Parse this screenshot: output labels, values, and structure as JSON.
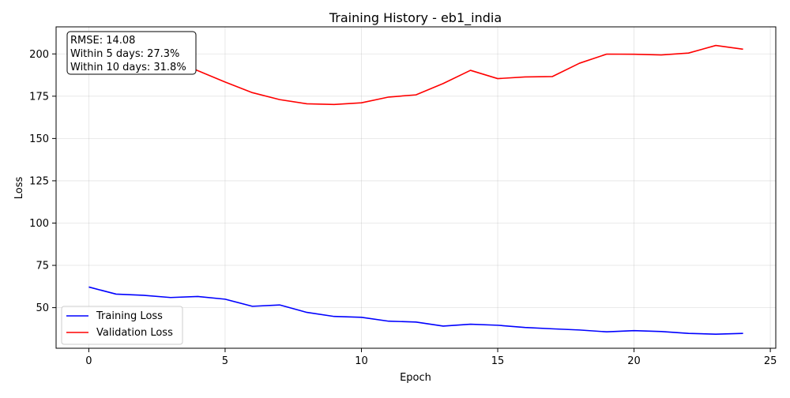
{
  "chart_data": {
    "type": "line",
    "title": "Training History - eb1_india",
    "xlabel": "Epoch",
    "ylabel": "Loss",
    "xlim": [
      -1.2,
      25.2
    ],
    "ylim": [
      26,
      216
    ],
    "xticks": [
      0,
      5,
      10,
      15,
      20,
      25
    ],
    "yticks": [
      50,
      75,
      100,
      125,
      150,
      175,
      200
    ],
    "grid": true,
    "legend_position": "lower-left",
    "x": [
      0,
      1,
      2,
      3,
      4,
      5,
      6,
      7,
      8,
      9,
      10,
      11,
      12,
      13,
      14,
      15,
      16,
      17,
      18,
      19,
      20,
      21,
      22,
      23,
      24
    ],
    "series": [
      {
        "name": "Training Loss",
        "color": "#0000ff",
        "values": [
          62.2,
          58.0,
          57.3,
          56.0,
          56.6,
          55.0,
          50.8,
          51.6,
          47.2,
          44.8,
          44.3,
          42.0,
          41.5,
          39.1,
          40.2,
          39.6,
          38.3,
          37.5,
          36.8,
          35.7,
          36.4,
          35.9,
          34.8,
          34.3,
          34.8
        ]
      },
      {
        "name": "Validation Loss",
        "color": "#ff0000",
        "values": [
          205.0,
          202.6,
          200.0,
          196.8,
          190.1,
          183.4,
          177.1,
          173.0,
          170.5,
          170.1,
          171.1,
          174.5,
          175.8,
          182.5,
          190.3,
          185.4,
          186.4,
          186.6,
          194.5,
          199.9,
          199.8,
          199.4,
          200.5,
          205.0,
          202.8
        ]
      }
    ],
    "annotation": {
      "lines": [
        "RMSE: 14.08",
        "Within 5 days: 27.3%",
        "Within 10 days: 31.8%"
      ]
    }
  }
}
